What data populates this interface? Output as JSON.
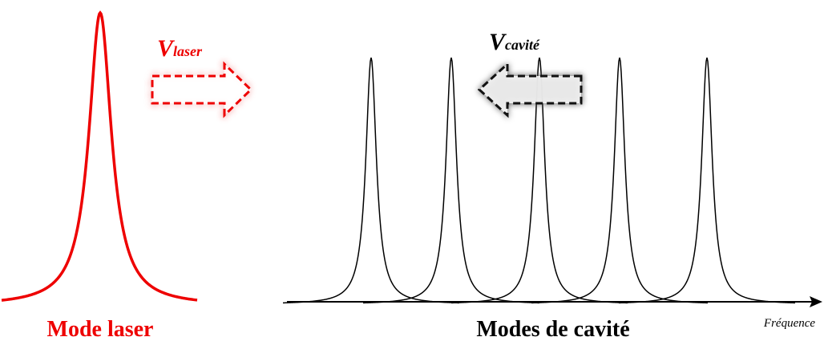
{
  "laser_label": {
    "symbol": "V",
    "subscript": "laser"
  },
  "cavity_label": {
    "symbol": "V",
    "subscript": "cavité"
  },
  "laser_caption": "Mode laser",
  "cavity_caption": "Modes de cavité",
  "axis_label": "Fréquence"
}
